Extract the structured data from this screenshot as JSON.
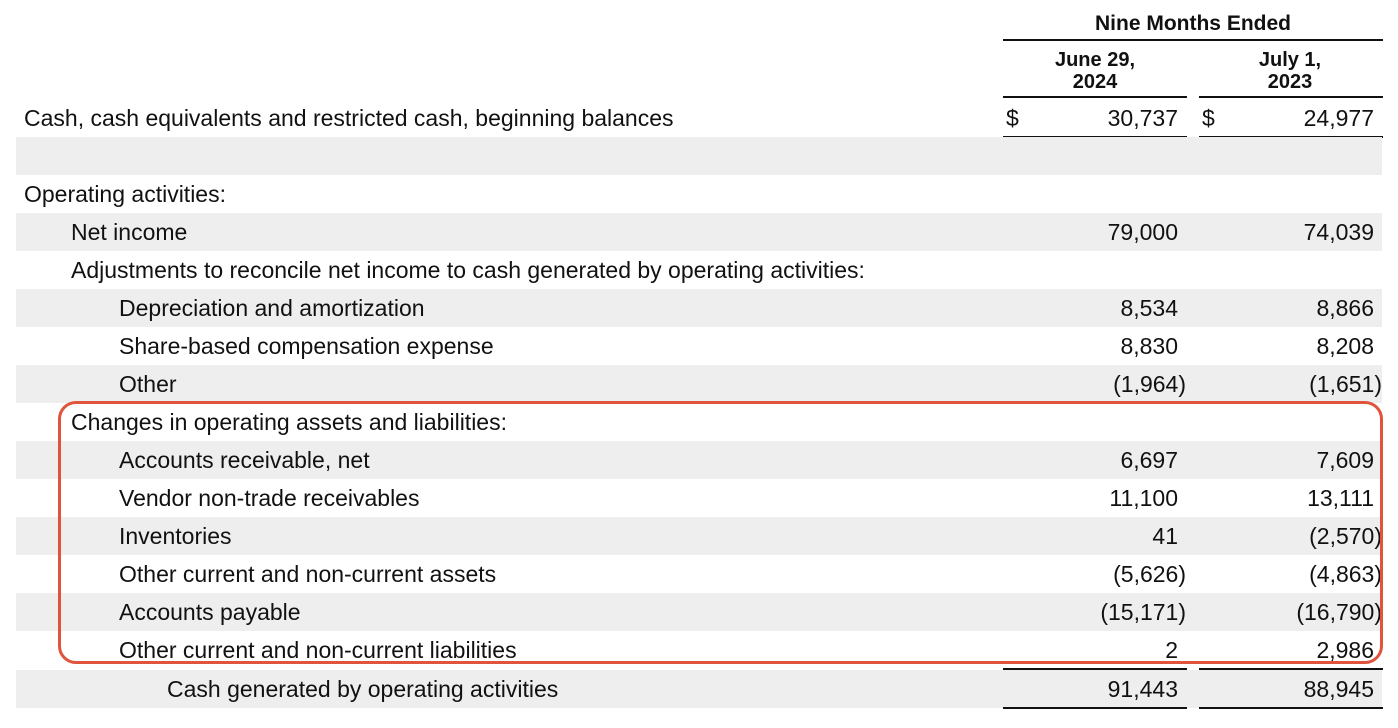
{
  "header": {
    "period": "Nine Months Ended",
    "columns": [
      {
        "line1": "June 29,",
        "line2": "2024"
      },
      {
        "line1": "July 1,",
        "line2": "2023"
      }
    ]
  },
  "currency_symbol": "$",
  "rows": [
    {
      "label": "Cash, cash equivalents and restricted cash, beginning balances",
      "v1": "30,737",
      "v2": "24,977"
    },
    {
      "label": "",
      "v1": "",
      "v2": ""
    },
    {
      "label": "Operating activities:",
      "v1": "",
      "v2": ""
    },
    {
      "label": "Net income",
      "v1": "79,000",
      "v2": "74,039"
    },
    {
      "label": "Adjustments to reconcile net income to cash generated by operating activities:",
      "v1": "",
      "v2": ""
    },
    {
      "label": "Depreciation and amortization",
      "v1": "8,534",
      "v2": "8,866"
    },
    {
      "label": "Share-based compensation expense",
      "v1": "8,830",
      "v2": "8,208"
    },
    {
      "label": "Other",
      "v1": "(1,964)",
      "v2": "(1,651)"
    },
    {
      "label": "Changes in operating assets and liabilities:",
      "v1": "",
      "v2": ""
    },
    {
      "label": "Accounts receivable, net",
      "v1": "6,697",
      "v2": "7,609"
    },
    {
      "label": "Vendor non-trade receivables",
      "v1": "11,100",
      "v2": "13,111"
    },
    {
      "label": "Inventories",
      "v1": "41",
      "v2": "(2,570)"
    },
    {
      "label": "Other current and non-current assets",
      "v1": "(5,626)",
      "v2": "(4,863)"
    },
    {
      "label": "Accounts payable",
      "v1": "(15,171)",
      "v2": "(16,790)"
    },
    {
      "label": "Other current and non-current liabilities",
      "v1": "2",
      "v2": "2,986"
    },
    {
      "label": "Cash generated by operating activities",
      "v1": "91,443",
      "v2": "88,945"
    }
  ],
  "colors": {
    "highlight_border": "#e0533d",
    "row_shade": "#eeeeee"
  }
}
